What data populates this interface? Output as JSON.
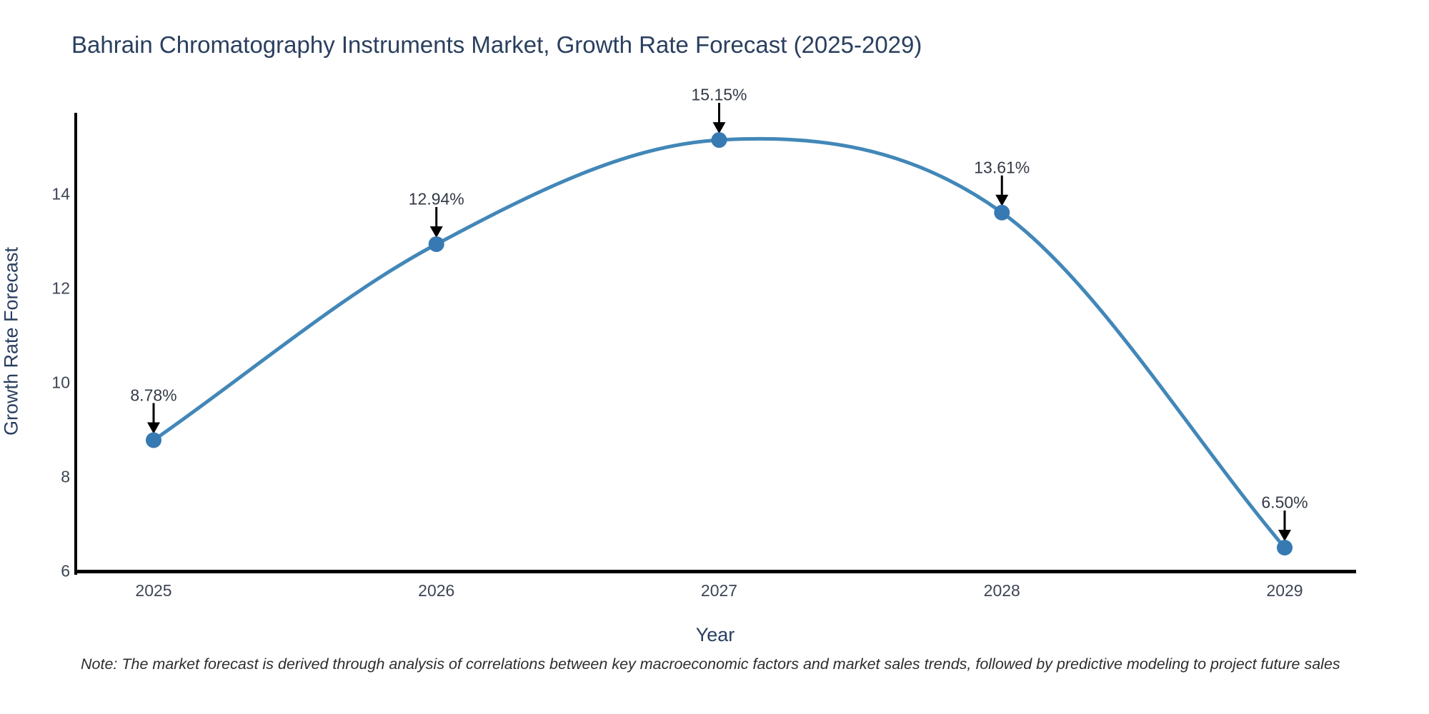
{
  "chart_data": {
    "type": "line",
    "title": "Bahrain Chromatography Instruments Market, Growth Rate Forecast (2025-2029)",
    "xlabel": "Year",
    "ylabel": "Growth Rate Forecast",
    "footnote": "Note: The market forecast is derived through analysis of correlations between key macroeconomic factors and market sales trends, followed by predictive modeling to project future sales",
    "x": [
      2025,
      2026,
      2027,
      2028,
      2029
    ],
    "xticks": [
      "2025",
      "2026",
      "2027",
      "2028",
      "2029"
    ],
    "series": [
      {
        "name": "Growth Rate Forecast",
        "values": [
          8.78,
          12.94,
          15.15,
          13.61,
          6.5
        ],
        "point_labels": [
          "8.78%",
          "12.94%",
          "15.15%",
          "13.61%",
          "6.50%"
        ]
      }
    ],
    "yticks": [
      6,
      8,
      10,
      12,
      14
    ],
    "ylim": [
      6,
      15.73
    ],
    "grid": false,
    "legend_position": "none",
    "line_shape": "spline",
    "colors": {
      "line": "#4287b8",
      "marker": "#3779b3",
      "axis": "#000000",
      "arrow": "#000000",
      "title_text": "#2a3f5f",
      "tick_text": "#3c4454"
    }
  }
}
